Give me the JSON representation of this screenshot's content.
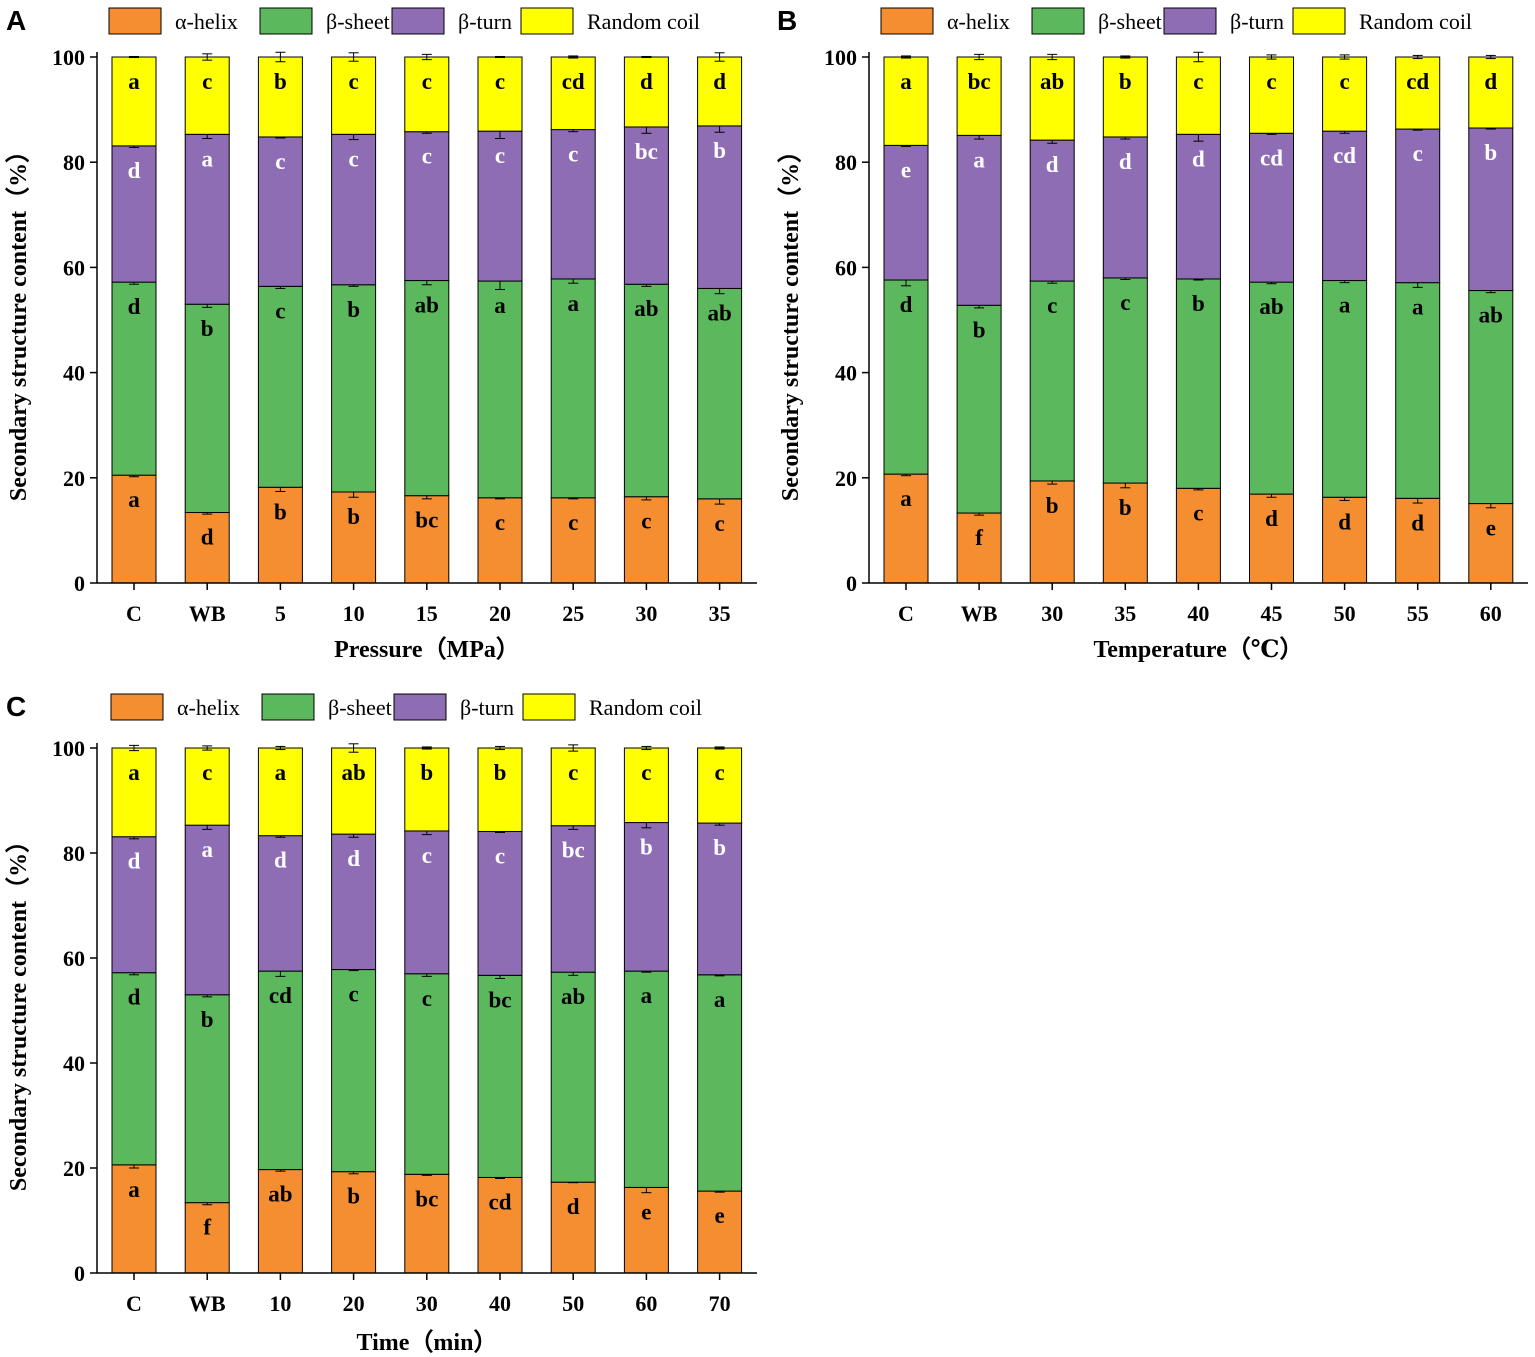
{
  "segment_colors": {
    "alpha_helix": "#F58E31",
    "beta_sheet": "#5CB85C",
    "beta_turn": "#8E6DB5",
    "random_coil": "#FFFF00"
  },
  "legend": [
    "α-helix",
    "β-sheet",
    "β-turn",
    "Random coil"
  ],
  "chart_data": [
    {
      "type": "bar",
      "stacked": true,
      "panel": "A",
      "xlabel": "Pressure（MPa）",
      "ylabel": "Secondary structure content（%）",
      "ylim": [
        0,
        100
      ],
      "yticks": [
        0,
        20,
        40,
        60,
        80,
        100
      ],
      "categories": [
        "C",
        "WB",
        "5",
        "10",
        "15",
        "20",
        "25",
        "30",
        "35"
      ],
      "series": [
        {
          "name": "α-helix",
          "values": [
            20.5,
            13.4,
            18.2,
            17.3,
            16.6,
            16.2,
            16.2,
            16.4,
            16.0
          ],
          "errors": [
            0.3,
            0.3,
            0.8,
            1.0,
            0.6,
            0.2,
            0.2,
            0.6,
            1.0
          ],
          "labels": [
            "a",
            "d",
            "b",
            "b",
            "bc",
            "c",
            "c",
            "c",
            "c"
          ]
        },
        {
          "name": "β-sheet",
          "values": [
            36.7,
            39.6,
            38.2,
            39.4,
            40.9,
            41.2,
            41.6,
            40.4,
            40.0
          ],
          "errors": [
            0.4,
            0.6,
            0.4,
            0.3,
            0.8,
            1.6,
            0.8,
            0.4,
            1.0
          ],
          "labels": [
            "d",
            "b",
            "c",
            "b",
            "ab",
            "a",
            "a",
            "ab",
            "ab"
          ]
        },
        {
          "name": "β-turn",
          "values": [
            25.9,
            32.3,
            28.4,
            28.6,
            28.3,
            28.5,
            28.4,
            29.9,
            30.9
          ],
          "errors": [
            0.3,
            0.8,
            0.2,
            1.0,
            0.3,
            1.4,
            0.4,
            1.2,
            1.2
          ],
          "labels": [
            "d",
            "a",
            "c",
            "c",
            "c",
            "c",
            "c",
            "bc",
            "b"
          ]
        },
        {
          "name": "Random coil",
          "values": [
            16.9,
            14.7,
            15.2,
            14.7,
            14.2,
            14.1,
            13.8,
            13.3,
            13.1
          ],
          "errors": [
            0.1,
            0.6,
            0.9,
            0.8,
            0.5,
            0.1,
            0.2,
            0.1,
            0.8
          ],
          "labels": [
            "a",
            "c",
            "b",
            "c",
            "c",
            "c",
            "cd",
            "d",
            "d"
          ]
        }
      ]
    },
    {
      "type": "bar",
      "stacked": true,
      "panel": "B",
      "xlabel": "Temperature（℃）",
      "ylabel": "Secondary structure content（%）",
      "ylim": [
        0,
        100
      ],
      "yticks": [
        0,
        20,
        40,
        60,
        80,
        100
      ],
      "categories": [
        "C",
        "WB",
        "30",
        "35",
        "40",
        "45",
        "50",
        "55",
        "60"
      ],
      "series": [
        {
          "name": "α-helix",
          "values": [
            20.7,
            13.3,
            19.4,
            19.0,
            18.0,
            16.9,
            16.3,
            16.1,
            15.1
          ],
          "errors": [
            0.3,
            0.4,
            0.6,
            0.9,
            0.3,
            0.6,
            0.6,
            0.9,
            0.8
          ],
          "labels": [
            "a",
            "f",
            "b",
            "b",
            "c",
            "d",
            "d",
            "d",
            "e"
          ]
        },
        {
          "name": "β-sheet",
          "values": [
            36.9,
            39.5,
            38.0,
            39.0,
            39.8,
            40.3,
            41.2,
            41.0,
            40.5
          ],
          "errors": [
            1.1,
            0.5,
            0.4,
            0.3,
            0.2,
            0.3,
            0.4,
            0.9,
            0.4
          ],
          "labels": [
            "d",
            "b",
            "c",
            "c",
            "b",
            "ab",
            "a",
            "a",
            "ab"
          ]
        },
        {
          "name": "β-turn",
          "values": [
            25.6,
            32.3,
            26.8,
            26.8,
            27.5,
            28.3,
            28.4,
            29.2,
            30.9
          ],
          "errors": [
            0.2,
            0.7,
            0.6,
            0.4,
            1.3,
            0.2,
            0.4,
            0.2,
            0.2
          ],
          "labels": [
            "e",
            "a",
            "d",
            "d",
            "d",
            "cd",
            "cd",
            "c",
            "b"
          ]
        },
        {
          "name": "Random coil",
          "values": [
            16.8,
            14.9,
            15.8,
            15.2,
            14.7,
            14.5,
            14.1,
            13.7,
            13.5
          ],
          "errors": [
            0.2,
            0.5,
            0.5,
            0.2,
            0.9,
            0.4,
            0.4,
            0.3,
            0.3
          ],
          "labels": [
            "a",
            "bc",
            "ab",
            "b",
            "c",
            "c",
            "c",
            "cd",
            "d"
          ]
        }
      ]
    },
    {
      "type": "bar",
      "stacked": true,
      "panel": "C",
      "xlabel": "Time（min）",
      "ylabel": "Secondary structure content（%）",
      "ylim": [
        0,
        100
      ],
      "yticks": [
        0,
        20,
        40,
        60,
        80,
        100
      ],
      "categories": [
        "C",
        "WB",
        "10",
        "20",
        "30",
        "40",
        "50",
        "60",
        "70"
      ],
      "series": [
        {
          "name": "α-helix",
          "values": [
            20.6,
            13.4,
            19.7,
            19.3,
            18.8,
            18.2,
            17.3,
            16.3,
            15.6
          ],
          "errors": [
            0.6,
            0.4,
            0.3,
            0.4,
            0.2,
            0.2,
            0.1,
            1.0,
            0.2
          ],
          "labels": [
            "a",
            "f",
            "ab",
            "b",
            "bc",
            "cd",
            "d",
            "e",
            "e"
          ]
        },
        {
          "name": "β-sheet",
          "values": [
            36.6,
            39.6,
            37.8,
            38.5,
            38.2,
            38.5,
            40.0,
            41.2,
            41.2
          ],
          "errors": [
            0.4,
            0.4,
            1.0,
            0.2,
            0.5,
            0.6,
            0.6,
            0.2,
            0.2
          ],
          "labels": [
            "d",
            "b",
            "cd",
            "c",
            "c",
            "bc",
            "ab",
            "a",
            "a"
          ]
        },
        {
          "name": "β-turn",
          "values": [
            25.9,
            32.3,
            25.8,
            25.8,
            27.2,
            27.4,
            27.9,
            28.3,
            28.9
          ],
          "errors": [
            0.4,
            0.8,
            0.3,
            0.6,
            0.7,
            0.2,
            0.7,
            1.0,
            0.4
          ],
          "labels": [
            "d",
            "a",
            "d",
            "d",
            "c",
            "c",
            "bc",
            "b",
            "b"
          ]
        },
        {
          "name": "Random coil",
          "values": [
            16.9,
            14.7,
            16.7,
            16.4,
            15.8,
            15.9,
            14.8,
            14.2,
            14.3
          ],
          "errors": [
            0.5,
            0.4,
            0.3,
            0.8,
            0.2,
            0.3,
            0.6,
            0.3,
            0.2
          ],
          "labels": [
            "a",
            "c",
            "a",
            "ab",
            "b",
            "b",
            "c",
            "c",
            "c"
          ]
        }
      ]
    }
  ]
}
